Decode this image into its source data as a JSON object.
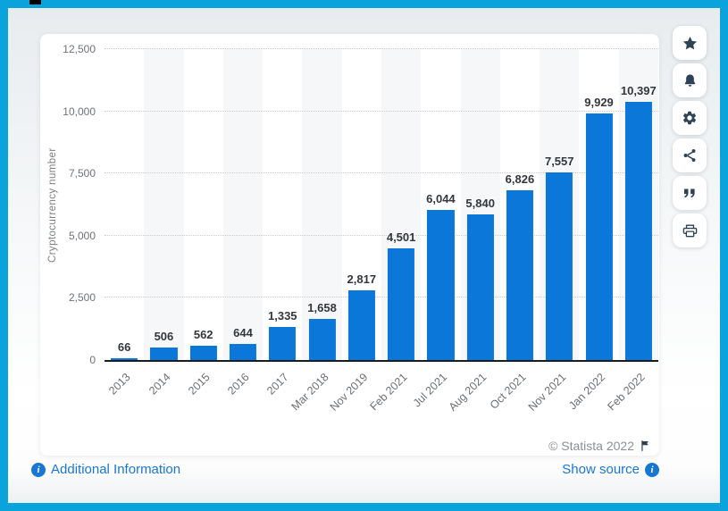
{
  "chart_data": {
    "type": "bar",
    "title": "",
    "ylabel": "Cryptocurrency number",
    "xlabel": "",
    "categories": [
      "2013",
      "2014",
      "2015",
      "2016",
      "2017",
      "Mar 2018",
      "Nov 2019",
      "Feb 2021",
      "Jul 2021",
      "Aug 2021",
      "Oct 2021",
      "Nov 2021",
      "Jan 2022",
      "Feb 2022"
    ],
    "values": [
      66,
      506,
      562,
      644,
      1335,
      1658,
      2817,
      4501,
      6044,
      5840,
      6826,
      7557,
      9929,
      10397
    ],
    "value_labels": [
      "66",
      "506",
      "562",
      "644",
      "1,335",
      "1,658",
      "2,817",
      "4,501",
      "6,044",
      "5,840",
      "6,826",
      "7,557",
      "9,929",
      "10,397"
    ],
    "ylim": [
      0,
      12500
    ],
    "y_ticks": [
      {
        "value": 0,
        "label": "0"
      },
      {
        "value": 2500,
        "label": "2,500"
      },
      {
        "value": 5000,
        "label": "5,000"
      },
      {
        "value": 7500,
        "label": "7,500"
      },
      {
        "value": 10000,
        "label": "10,000"
      },
      {
        "value": 12500,
        "label": "12,500"
      }
    ],
    "grid": "horizontal-dotted",
    "legend": "none",
    "bar_color": "#0b77d9"
  },
  "toolbar": {
    "icons": [
      "star-icon",
      "bell-icon",
      "gear-icon",
      "share-icon",
      "quote-icon",
      "print-icon"
    ]
  },
  "attribution": {
    "copyright": "© Statista 2022"
  },
  "footer": {
    "additional_info_label": "Additional Information",
    "show_source_label": "Show source"
  },
  "colors": {
    "frame_border": "#0aa3dc",
    "bar": "#0b77d9",
    "link": "#1777d2",
    "axis_line": "#191c20",
    "tick_text": "#6e7276",
    "value_text": "#33373d",
    "icon": "#2d4256",
    "stripe": "#f6f7f8"
  }
}
